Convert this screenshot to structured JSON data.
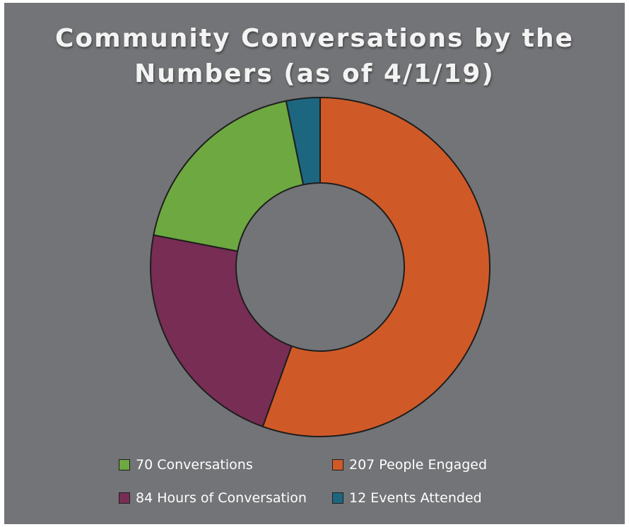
{
  "title_lines": [
    "Community Conversations by the",
    "Numbers (as of 4/1/19)"
  ],
  "chart_data": {
    "type": "pie",
    "subtype": "donut",
    "title": "Community Conversations by the Numbers (as of 4/1/19)",
    "start_angle_deg": 0,
    "direction": "clockwise",
    "legend_placement": "bottom",
    "series": [
      {
        "name": "",
        "slices": [
          {
            "label": "207 People Engaged",
            "value": 207,
            "color": "#d05a27"
          },
          {
            "label": "84 Hours of Conversation",
            "value": 84,
            "color": "#782d54"
          },
          {
            "label": "70 Conversations",
            "value": 70,
            "color": "#6da841"
          },
          {
            "label": "12 Events Attended",
            "value": 12,
            "color": "#1d6680"
          }
        ]
      }
    ]
  },
  "legend": {
    "items": [
      {
        "label": "70 Conversations",
        "color": "#6da841"
      },
      {
        "label": "207 People Engaged",
        "color": "#d05a27"
      },
      {
        "label": "84 Hours of Conversation",
        "color": "#782d54"
      },
      {
        "label": "12 Events Attended",
        "color": "#1d6680"
      }
    ]
  },
  "colors": {
    "panel_background": "#737477",
    "title_text": "#f3f3f3",
    "slice_outline": "#1e1e1e"
  }
}
